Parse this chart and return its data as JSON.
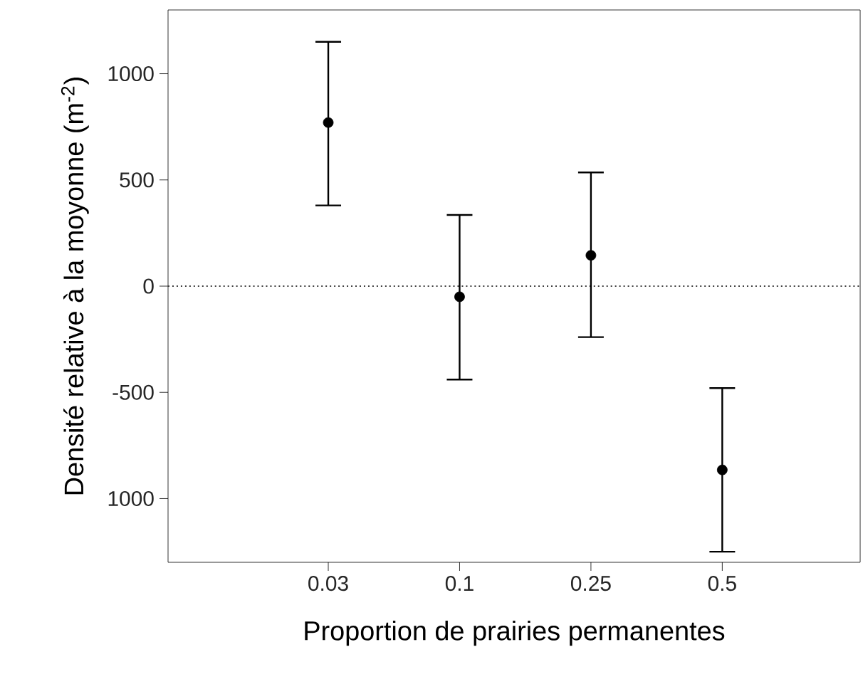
{
  "chart_data": {
    "type": "scatter",
    "xlabel": "Proportion de prairies permanentes",
    "ylabel": "Densité relative à la moyonne (m$^{-2}$)",
    "categories": [
      "0.03",
      "0.1",
      "0.25",
      "0.5"
    ],
    "values": [
      770,
      -50,
      145,
      -865
    ],
    "errors": [
      [
        380,
        1150
      ],
      [
        -440,
        335
      ],
      [
        -240,
        535
      ],
      [
        -1250,
        -480
      ]
    ],
    "color": "#000000",
    "marker": "circle",
    "ylim": [
      -1300,
      1300
    ],
    "yticks": [
      {
        "value": -1000,
        "label": "1000"
      },
      -500,
      0,
      500,
      1000
    ],
    "ref_lines": [
      {
        "axis": "y",
        "value": 0,
        "line_style": "dotted",
        "color": "#404040"
      }
    ]
  }
}
